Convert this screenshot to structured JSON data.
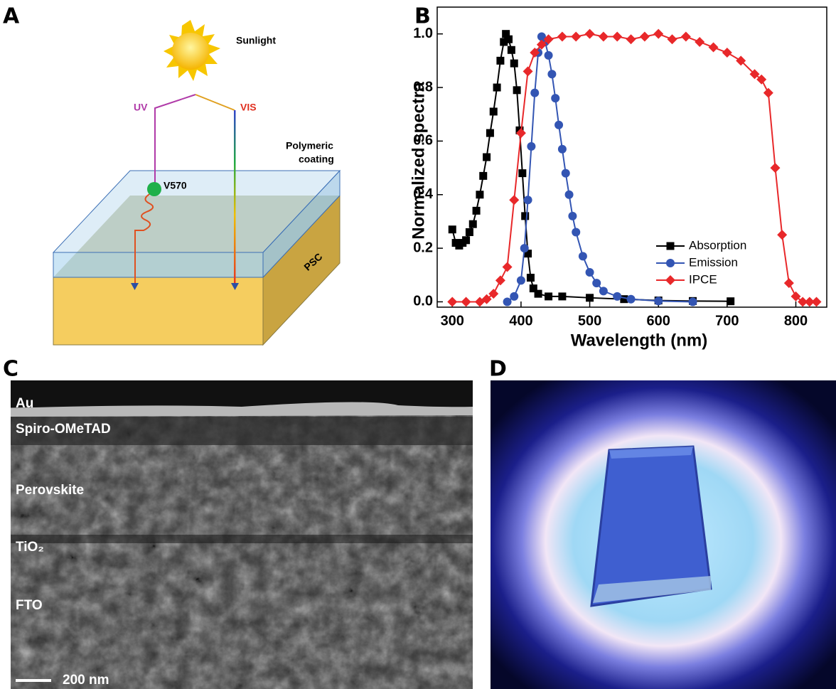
{
  "panel_labels": [
    "A",
    "B",
    "C",
    "D"
  ],
  "diagram": {
    "sunlight": "Sunlight",
    "uv": "UV",
    "vis": "VIS",
    "coating_lines": [
      "Polymeric",
      "coating"
    ],
    "dye": "V570",
    "cell": "PSC"
  },
  "sem": {
    "layers": [
      "Au",
      "Spiro-OMeTAD",
      "Perovskite",
      "TiO₂",
      "FTO"
    ],
    "scale_bar": "200 nm"
  },
  "chart_data": {
    "type": "line",
    "xlabel": "Wavelength (nm)",
    "ylabel": "Normalized spectra",
    "xlim": [
      278,
      845
    ],
    "ylim": [
      -0.02,
      1.1
    ],
    "xticks": [
      300,
      400,
      500,
      600,
      700,
      800
    ],
    "yticks": [
      {
        "value": 0,
        "label": "0.0"
      },
      0.2,
      0.4,
      0.6,
      0.8,
      {
        "value": 1,
        "label": "1.0"
      }
    ],
    "legend": "lower right",
    "series": [
      {
        "name": "Absorption",
        "color": "#000000",
        "marker": "square",
        "x": [
          300,
          305,
          310,
          315,
          320,
          325,
          330,
          335,
          340,
          345,
          350,
          355,
          360,
          365,
          370,
          375,
          378,
          382,
          386,
          390,
          394,
          398,
          402,
          406,
          410,
          414,
          418,
          425,
          440,
          460,
          500,
          550,
          600,
          650,
          705
        ],
        "values": [
          0.27,
          0.22,
          0.21,
          0.22,
          0.23,
          0.26,
          0.29,
          0.34,
          0.4,
          0.47,
          0.54,
          0.63,
          0.71,
          0.8,
          0.9,
          0.97,
          1.0,
          0.98,
          0.94,
          0.89,
          0.79,
          0.64,
          0.48,
          0.32,
          0.18,
          0.09,
          0.05,
          0.03,
          0.02,
          0.02,
          0.015,
          0.01,
          0.005,
          0.003,
          0.002
        ]
      },
      {
        "name": "Emission",
        "color": "#3355b3",
        "marker": "circle",
        "x": [
          380,
          390,
          400,
          405,
          410,
          415,
          420,
          425,
          430,
          435,
          440,
          445,
          450,
          455,
          460,
          465,
          470,
          475,
          480,
          490,
          500,
          510,
          520,
          540,
          560,
          600,
          650
        ],
        "values": [
          0,
          0.02,
          0.08,
          0.2,
          0.38,
          0.58,
          0.78,
          0.93,
          0.99,
          0.97,
          0.92,
          0.85,
          0.76,
          0.66,
          0.57,
          0.48,
          0.4,
          0.32,
          0.26,
          0.17,
          0.11,
          0.07,
          0.04,
          0.02,
          0.01,
          0.003,
          0
        ]
      },
      {
        "name": "IPCE",
        "color": "#e8282a",
        "marker": "diamond",
        "x": [
          300,
          320,
          340,
          350,
          360,
          370,
          380,
          390,
          400,
          410,
          420,
          430,
          440,
          460,
          480,
          500,
          520,
          540,
          560,
          580,
          600,
          620,
          640,
          660,
          680,
          700,
          720,
          740,
          750,
          760,
          770,
          780,
          790,
          800,
          810,
          820,
          830
        ],
        "values": [
          0,
          0,
          0,
          0.01,
          0.03,
          0.08,
          0.13,
          0.38,
          0.63,
          0.86,
          0.93,
          0.96,
          0.98,
          0.99,
          0.99,
          1.0,
          0.99,
          0.99,
          0.98,
          0.99,
          1.0,
          0.98,
          0.99,
          0.97,
          0.95,
          0.93,
          0.9,
          0.85,
          0.83,
          0.78,
          0.5,
          0.25,
          0.07,
          0.02,
          0,
          0,
          0
        ]
      }
    ]
  }
}
